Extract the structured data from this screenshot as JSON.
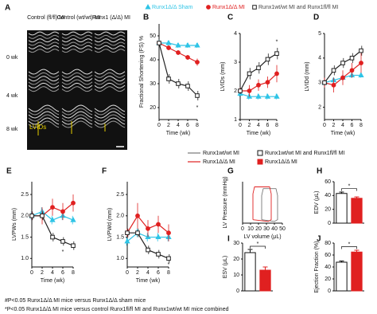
{
  "panel_a": {
    "label": "A",
    "columns": [
      "Control (fl/fl) MI",
      "Control (wt/wt) MI",
      "Runx1 (Δ/Δ) MI"
    ],
    "rows": [
      "0 wk",
      "4 wk",
      "8 wk"
    ],
    "annotation": "LVIDs"
  },
  "chart_data": [
    {
      "type": "line",
      "label": "B",
      "ylabel": "Fractional Shortening (FS) %",
      "xlabel": "Time (wk)",
      "x": [
        0,
        2,
        4,
        6,
        8
      ],
      "xlim": [
        0,
        8
      ],
      "xticks": [
        0,
        2,
        4,
        6,
        8
      ],
      "ylim": [
        15,
        55
      ],
      "yticks": [
        20,
        30,
        40,
        50
      ],
      "series": [
        {
          "name": "Runx1Δ/Δ Sham",
          "color": "#2ec4e6",
          "marker": "triangle",
          "values": [
            47,
            47,
            46,
            46,
            46
          ],
          "errors": [
            1,
            1,
            1,
            1,
            1
          ]
        },
        {
          "name": "Runx1Δ/Δ MI",
          "color": "#e02020",
          "marker": "circle",
          "values": [
            47,
            45,
            43,
            41,
            39
          ],
          "errors": [
            1,
            1,
            1,
            1,
            1.5
          ]
        },
        {
          "name": "Runx1wt/wt MI and Runx1fl/fl MI",
          "color": "#222222",
          "marker": "square",
          "values": [
            47,
            32,
            30,
            29,
            25
          ],
          "errors": [
            1,
            2,
            2,
            2,
            2
          ]
        }
      ],
      "annotations": [
        {
          "text": "*",
          "x": 8,
          "y": 20
        }
      ]
    },
    {
      "type": "line",
      "label": "C",
      "ylabel": "LVIDs (mm)",
      "xlabel": "Time (wk)",
      "x": [
        0,
        2,
        4,
        6,
        8
      ],
      "xlim": [
        0,
        8
      ],
      "xticks": [
        0,
        2,
        4,
        6,
        8
      ],
      "ylim": [
        1,
        4
      ],
      "yticks": [
        1,
        2,
        3,
        4
      ],
      "series": [
        {
          "name": "Runx1Δ/Δ Sham",
          "color": "#2ec4e6",
          "marker": "triangle",
          "values": [
            1.9,
            1.8,
            1.8,
            1.8,
            1.8
          ],
          "errors": [
            0.1,
            0.1,
            0.1,
            0.1,
            0.1
          ]
        },
        {
          "name": "Runx1Δ/Δ MI",
          "color": "#e02020",
          "marker": "circle",
          "values": [
            2.0,
            2.0,
            2.2,
            2.3,
            2.6
          ],
          "errors": [
            0.1,
            0.2,
            0.2,
            0.2,
            0.3
          ]
        },
        {
          "name": "Runx1wt/wt MI and Runx1fl/fl MI",
          "color": "#222222",
          "marker": "square",
          "values": [
            2.0,
            2.6,
            2.8,
            3.1,
            3.3
          ],
          "errors": [
            0.1,
            0.2,
            0.2,
            0.2,
            0.2
          ]
        }
      ],
      "annotations": [
        {
          "text": "*",
          "x": 8,
          "y": 3.7
        }
      ]
    },
    {
      "type": "line",
      "label": "D",
      "ylabel": "LVIDd (mm)",
      "xlabel": "Time (wk)",
      "x": [
        0,
        2,
        4,
        6,
        8
      ],
      "xlim": [
        0,
        8
      ],
      "xticks": [
        0,
        2,
        4,
        6,
        8
      ],
      "ylim": [
        1.5,
        5
      ],
      "yticks": [
        2,
        3,
        4,
        5
      ],
      "series": [
        {
          "name": "Runx1Δ/Δ Sham",
          "color": "#2ec4e6",
          "marker": "triangle",
          "values": [
            3.0,
            3.1,
            3.2,
            3.3,
            3.3
          ],
          "errors": [
            0.1,
            0.1,
            0.1,
            0.1,
            0.1
          ]
        },
        {
          "name": "Runx1Δ/Δ MI",
          "color": "#e02020",
          "marker": "circle",
          "values": [
            3.0,
            2.9,
            3.2,
            3.5,
            3.8
          ],
          "errors": [
            0.2,
            0.3,
            0.3,
            0.3,
            0.4
          ]
        },
        {
          "name": "Runx1wt/wt MI and Runx1fl/fl MI",
          "color": "#222222",
          "marker": "square",
          "values": [
            3.0,
            3.5,
            3.8,
            4.0,
            4.3
          ],
          "errors": [
            0.1,
            0.2,
            0.2,
            0.2,
            0.2
          ]
        }
      ]
    },
    {
      "type": "line",
      "label": "E",
      "ylabel": "LVPWs (mm)",
      "xlabel": "Time (wk)",
      "x": [
        0,
        2,
        4,
        6,
        8
      ],
      "xlim": [
        0,
        8
      ],
      "xticks": [
        0,
        2,
        4,
        6,
        8
      ],
      "ylim": [
        0.8,
        2.8
      ],
      "yticks": [
        {
          "value": 1,
          "label": "1.0"
        },
        1.5,
        {
          "value": 2,
          "label": "2.0"
        },
        2.5
      ],
      "series": [
        {
          "name": "Runx1Δ/Δ Sham",
          "color": "#2ec4e6",
          "marker": "triangle",
          "values": [
            2.0,
            2.1,
            1.9,
            2.0,
            1.9
          ],
          "errors": [
            0.1,
            0.1,
            0.1,
            0.1,
            0.1
          ]
        },
        {
          "name": "Runx1Δ/Δ MI",
          "color": "#e02020",
          "marker": "circle",
          "values": [
            2.0,
            2.0,
            2.2,
            2.1,
            2.3
          ],
          "errors": [
            0.1,
            0.2,
            0.2,
            0.2,
            0.2
          ]
        },
        {
          "name": "Runx1wt/wt MI and Runx1fl/fl MI",
          "color": "#222222",
          "marker": "square",
          "values": [
            2.0,
            2.0,
            1.5,
            1.4,
            1.3
          ],
          "errors": [
            0.1,
            0.1,
            0.1,
            0.1,
            0.1
          ]
        }
      ],
      "annotations": [
        {
          "text": "*",
          "x": 6,
          "y": 1.15
        }
      ]
    },
    {
      "type": "line",
      "label": "F",
      "ylabel": "LVPWd (mm)",
      "xlabel": "Time (wk)",
      "x": [
        0,
        2,
        4,
        6,
        8
      ],
      "xlim": [
        0,
        8
      ],
      "xticks": [
        0,
        2,
        4,
        6,
        8
      ],
      "ylim": [
        0.8,
        2.8
      ],
      "yticks": [
        {
          "value": 1,
          "label": "1.0"
        },
        1.5,
        {
          "value": 2,
          "label": "2.0"
        },
        2.5
      ],
      "series": [
        {
          "name": "Runx1Δ/Δ Sham",
          "color": "#2ec4e6",
          "marker": "triangle",
          "values": [
            1.4,
            1.6,
            1.5,
            1.5,
            1.5
          ],
          "errors": [
            0.1,
            0.1,
            0.1,
            0.1,
            0.1
          ]
        },
        {
          "name": "Runx1Δ/Δ MI",
          "color": "#e02020",
          "marker": "circle",
          "values": [
            1.6,
            2.0,
            1.7,
            1.8,
            1.6
          ],
          "errors": [
            0.1,
            0.3,
            0.2,
            0.2,
            0.2
          ]
        },
        {
          "name": "Runx1wt/wt MI and Runx1fl/fl MI",
          "color": "#222222",
          "marker": "square",
          "values": [
            1.6,
            1.6,
            1.2,
            1.1,
            1.0
          ],
          "errors": [
            0.1,
            0.1,
            0.1,
            0.1,
            0.1
          ]
        }
      ],
      "annotations": [
        {
          "text": "*",
          "x": 8,
          "y": 0.85
        }
      ]
    },
    {
      "type": "loop",
      "label": "G",
      "ylabel": "LV Pressure (mmHg)",
      "xlabel": "LV volume (μL)",
      "xlim": [
        0,
        50
      ],
      "xticks": [
        0,
        10,
        20,
        30,
        40,
        50
      ],
      "ylim": [
        0,
        120
      ],
      "series": [
        {
          "name": "Runx1wt/wt MI",
          "color": "#777777",
          "x": [
            24,
            24,
            26,
            42,
            44,
            44,
            40,
            24
          ],
          "values": [
            10,
            80,
            100,
            100,
            80,
            10,
            5,
            10
          ]
        },
        {
          "name": "Runx1Δ/Δ MI",
          "color": "#e02020",
          "x": [
            13,
            13,
            15,
            34,
            36,
            36,
            32,
            13
          ],
          "values": [
            10,
            85,
            105,
            105,
            85,
            10,
            5,
            10
          ]
        }
      ]
    },
    {
      "type": "bar",
      "label": "H",
      "ylabel": "EDV (μL)",
      "categories": [
        "Runx1wt/wt MI and Runx1fl/fl MI",
        "Runx1Δ/Δ MI"
      ],
      "colors": [
        "#ffffff",
        "#e02020"
      ],
      "values": [
        43,
        36
      ],
      "errors": [
        2,
        2
      ],
      "ylim": [
        0,
        60
      ],
      "yticks": [
        0,
        20,
        40,
        60
      ],
      "annotation": {
        "text": "*",
        "y": 50
      }
    },
    {
      "type": "bar",
      "label": "I",
      "ylabel": "ESV (μL)",
      "categories": [
        "Runx1wt/wt MI and Runx1fl/fl MI",
        "Runx1Δ/Δ MI"
      ],
      "colors": [
        "#ffffff",
        "#e02020"
      ],
      "values": [
        24,
        13
      ],
      "errors": [
        2,
        2
      ],
      "ylim": [
        0,
        30
      ],
      "yticks": [
        0,
        10,
        20,
        30
      ],
      "annotation": {
        "text": "*",
        "y": 28
      }
    },
    {
      "type": "bar",
      "label": "J",
      "ylabel": "Ejection Fraction (%)",
      "categories": [
        "Runx1wt/wt MI and Runx1fl/fl MI",
        "Runx1Δ/Δ MI"
      ],
      "colors": [
        "#ffffff",
        "#e02020"
      ],
      "values": [
        48,
        65
      ],
      "errors": [
        2,
        3
      ],
      "ylim": [
        0,
        80
      ],
      "yticks": [
        0,
        20,
        40,
        60,
        80
      ],
      "annotation": {
        "text": "*",
        "y": 74
      }
    }
  ],
  "footnotes": [
    "#P<0.05 Runx1Δ/Δ MI mice versus Runx1Δ/Δ sham mice",
    "*P<0.05 Runx1Δ/Δ MI mice versus control Runx1fl/fl MI and Runx1wt/wt MI mice combined"
  ]
}
